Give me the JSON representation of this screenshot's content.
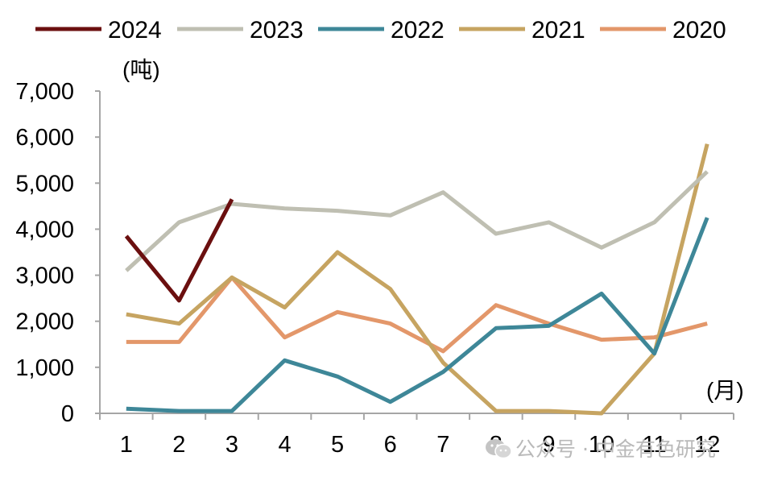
{
  "chart_data": {
    "type": "line",
    "title": "",
    "xlabel": "(月)",
    "ylabel": "(吨)",
    "x": [
      "1",
      "2",
      "3",
      "4",
      "5",
      "6",
      "7",
      "8",
      "9",
      "10",
      "11",
      "12"
    ],
    "ylim": [
      0,
      7000
    ],
    "yticks": [
      0,
      1000,
      2000,
      3000,
      4000,
      5000,
      6000,
      7000
    ],
    "ytick_labels": [
      "0",
      "1,000",
      "2,000",
      "3,000",
      "4,000",
      "5,000",
      "6,000",
      "7,000"
    ],
    "grid": false,
    "legend_position": "top",
    "series": [
      {
        "name": "2024",
        "color": "#6b0f0f",
        "values": [
          3850,
          2450,
          4650,
          null,
          null,
          null,
          null,
          null,
          null,
          null,
          null,
          null
        ]
      },
      {
        "name": "2023",
        "color": "#bfbfb2",
        "values": [
          3100,
          4150,
          4550,
          4450,
          4400,
          4300,
          4800,
          3900,
          4150,
          3600,
          4150,
          5250
        ]
      },
      {
        "name": "2022",
        "color": "#3e8798",
        "values": [
          100,
          50,
          50,
          1150,
          800,
          250,
          900,
          1850,
          1900,
          2600,
          1300,
          4250
        ]
      },
      {
        "name": "2021",
        "color": "#c6a461",
        "values": [
          2150,
          1950,
          2950,
          2300,
          3500,
          2700,
          1100,
          50,
          50,
          0,
          1300,
          5850
        ]
      },
      {
        "name": "2020",
        "color": "#e3976a",
        "values": [
          1550,
          1550,
          2950,
          1650,
          2200,
          1950,
          1350,
          2350,
          1950,
          1600,
          1650,
          1950
        ]
      }
    ]
  },
  "watermark": {
    "text": "公众号 · 中金有色研究",
    "icon": "wechat-icon"
  }
}
